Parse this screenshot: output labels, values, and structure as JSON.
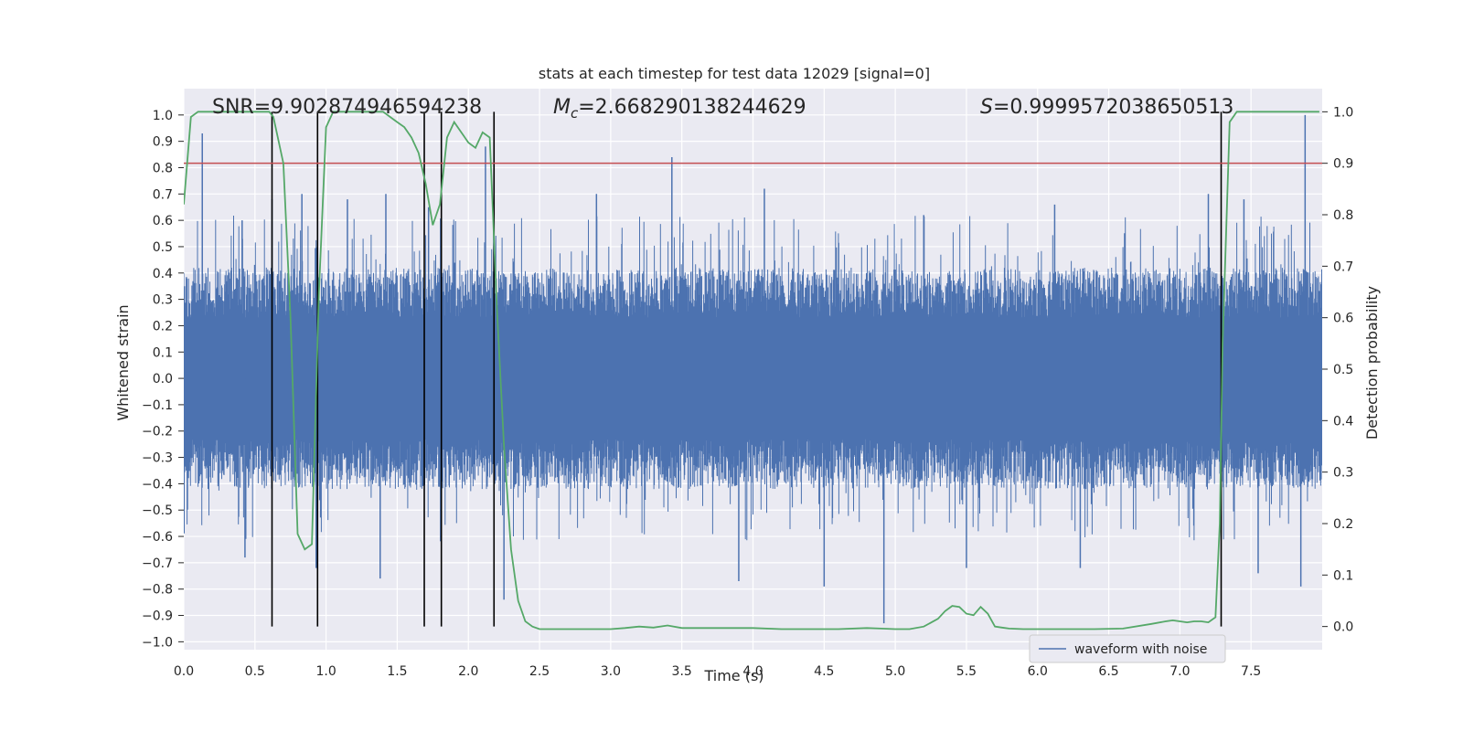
{
  "chart_data": {
    "type": "line",
    "title": "stats at each timestep for test data 12029 [signal=0]",
    "xlabel": "Time (s)",
    "ylabel": "Whitened strain",
    "y2label": "Detection probability",
    "xlim": [
      0,
      8
    ],
    "ylim": [
      -1.03,
      1.1
    ],
    "y2lim": [
      -0.045,
      1.045
    ],
    "x_ticks": [
      0.0,
      0.5,
      1.0,
      1.5,
      2.0,
      2.5,
      3.0,
      3.5,
      4.0,
      4.5,
      5.0,
      5.5,
      6.0,
      6.5,
      7.0,
      7.5
    ],
    "x_tick_labels": [
      "0.0",
      "0.5",
      "1.0",
      "1.5",
      "2.0",
      "2.5",
      "3.0",
      "3.5",
      "4.0",
      "4.5",
      "5.0",
      "5.5",
      "6.0",
      "6.5",
      "7.0",
      "7.5"
    ],
    "y_ticks": [
      1.0,
      0.9,
      0.8,
      0.7,
      0.6,
      0.5,
      0.4,
      0.3,
      0.2,
      0.1,
      0.0,
      -0.1,
      -0.2,
      -0.3,
      -0.4,
      -0.5,
      -0.6,
      -0.7,
      -0.8,
      -0.9,
      -1.0
    ],
    "y_tick_labels": [
      "1.0",
      "0.9",
      "0.8",
      "0.7",
      "0.6",
      "0.5",
      "0.4",
      "0.3",
      "0.2",
      "0.1",
      "0.0",
      "−0.1",
      "−0.2",
      "−0.3",
      "−0.4",
      "−0.5",
      "−0.6",
      "−0.7",
      "−0.8",
      "−0.9",
      "−1.0"
    ],
    "y2_ticks": [
      1.0,
      0.9,
      0.8,
      0.7,
      0.6,
      0.5,
      0.4,
      0.3,
      0.2,
      0.1,
      0.0
    ],
    "y2_tick_labels": [
      "1.0",
      "0.9",
      "0.8",
      "0.7",
      "0.6",
      "0.5",
      "0.4",
      "0.3",
      "0.2",
      "0.1",
      "0.0"
    ],
    "grid": true,
    "legend": {
      "placement": "bottom-right",
      "entries": [
        {
          "label": "waveform with noise",
          "color": "#4c72b0"
        }
      ]
    },
    "annotations": {
      "snr": "SNR=9.902874946594238",
      "mc_symbol": "M",
      "mc_sub": "c",
      "mc_value": "=2.668290138244629",
      "s_symbol": "S",
      "s_value": "=0.9999572038650513"
    },
    "series": [
      {
        "name": "waveform with noise",
        "axis": "left",
        "color": "#4c72b0",
        "style": "dense noise trace",
        "envelope_typical": [
          -0.42,
          0.42
        ],
        "peaks_positive": [
          {
            "x": 0.13,
            "y": 0.93
          },
          {
            "x": 0.41,
            "y": 0.6
          },
          {
            "x": 0.62,
            "y": 0.68
          },
          {
            "x": 0.83,
            "y": 0.7
          },
          {
            "x": 1.15,
            "y": 0.68
          },
          {
            "x": 1.42,
            "y": 0.7
          },
          {
            "x": 1.72,
            "y": 0.65
          },
          {
            "x": 2.12,
            "y": 0.88
          },
          {
            "x": 2.9,
            "y": 0.7
          },
          {
            "x": 3.43,
            "y": 0.84
          },
          {
            "x": 4.08,
            "y": 0.72
          },
          {
            "x": 5.2,
            "y": 0.62
          },
          {
            "x": 6.12,
            "y": 0.66
          },
          {
            "x": 7.2,
            "y": 0.7
          },
          {
            "x": 7.45,
            "y": 0.68
          },
          {
            "x": 7.88,
            "y": 1.0
          }
        ],
        "peaks_negative": [
          {
            "x": 0.43,
            "y": -0.68
          },
          {
            "x": 0.93,
            "y": -0.72
          },
          {
            "x": 1.38,
            "y": -0.76
          },
          {
            "x": 2.25,
            "y": -0.84
          },
          {
            "x": 3.9,
            "y": -0.77
          },
          {
            "x": 4.5,
            "y": -0.79
          },
          {
            "x": 4.92,
            "y": -0.93
          },
          {
            "x": 5.5,
            "y": -0.72
          },
          {
            "x": 6.3,
            "y": -0.72
          },
          {
            "x": 7.55,
            "y": -0.74
          },
          {
            "x": 7.85,
            "y": -0.79
          }
        ]
      },
      {
        "name": "",
        "axis": "right",
        "color": "#55a868",
        "x": [
          0.0,
          0.05,
          0.1,
          0.2,
          0.3,
          0.4,
          0.5,
          0.6,
          0.63,
          0.7,
          0.75,
          0.8,
          0.85,
          0.9,
          0.95,
          1.0,
          1.05,
          1.1,
          1.2,
          1.3,
          1.4,
          1.45,
          1.5,
          1.55,
          1.6,
          1.65,
          1.7,
          1.75,
          1.8,
          1.85,
          1.9,
          1.95,
          2.0,
          2.05,
          2.1,
          2.15,
          2.2,
          2.25,
          2.3,
          2.35,
          2.4,
          2.45,
          2.5,
          2.55,
          2.6,
          2.7,
          2.8,
          2.9,
          3.0,
          3.1,
          3.2,
          3.3,
          3.4,
          3.5,
          3.6,
          3.8,
          4.0,
          4.2,
          4.4,
          4.6,
          4.8,
          4.9,
          5.0,
          5.1,
          5.2,
          5.3,
          5.35,
          5.4,
          5.45,
          5.5,
          5.55,
          5.6,
          5.65,
          5.7,
          5.75,
          5.8,
          5.9,
          6.0,
          6.2,
          6.4,
          6.6,
          6.8,
          6.9,
          6.95,
          7.0,
          7.05,
          7.1,
          7.15,
          7.2,
          7.25,
          7.28,
          7.3,
          7.35,
          7.4,
          7.45,
          7.5,
          7.6,
          7.7,
          7.8,
          7.9,
          7.98
        ],
        "values": [
          0.82,
          0.99,
          1.0,
          1.0,
          1.0,
          1.0,
          1.0,
          1.0,
          0.99,
          0.9,
          0.6,
          0.18,
          0.15,
          0.16,
          0.65,
          0.97,
          1.0,
          1.0,
          1.0,
          1.0,
          1.0,
          0.99,
          0.98,
          0.97,
          0.95,
          0.92,
          0.86,
          0.78,
          0.82,
          0.95,
          0.98,
          0.96,
          0.94,
          0.93,
          0.96,
          0.95,
          0.62,
          0.35,
          0.15,
          0.05,
          0.01,
          0.0,
          -0.005,
          -0.005,
          -0.005,
          -0.005,
          -0.005,
          -0.005,
          -0.005,
          -0.003,
          0.0,
          -0.002,
          0.002,
          -0.003,
          -0.003,
          -0.003,
          -0.003,
          -0.005,
          -0.005,
          -0.005,
          -0.003,
          -0.004,
          -0.005,
          -0.005,
          0.0,
          0.015,
          0.03,
          0.04,
          0.038,
          0.025,
          0.022,
          0.038,
          0.025,
          0.0,
          -0.002,
          -0.004,
          -0.005,
          -0.005,
          -0.005,
          -0.005,
          -0.004,
          0.005,
          0.01,
          0.012,
          0.01,
          0.008,
          0.01,
          0.01,
          0.008,
          0.018,
          0.2,
          0.55,
          0.98,
          1.0,
          1.0,
          1.0,
          1.0,
          1.0,
          1.0,
          1.0,
          1.0
        ]
      }
    ],
    "threshold_line": {
      "axis": "right",
      "value": 0.9,
      "color": "#c44e52"
    },
    "event_markers": {
      "color": "#000000",
      "axis": "right",
      "ymin": 0.0,
      "ymax": 1.0,
      "x": [
        0.62,
        0.94,
        1.69,
        1.81,
        2.18,
        7.29
      ]
    }
  }
}
